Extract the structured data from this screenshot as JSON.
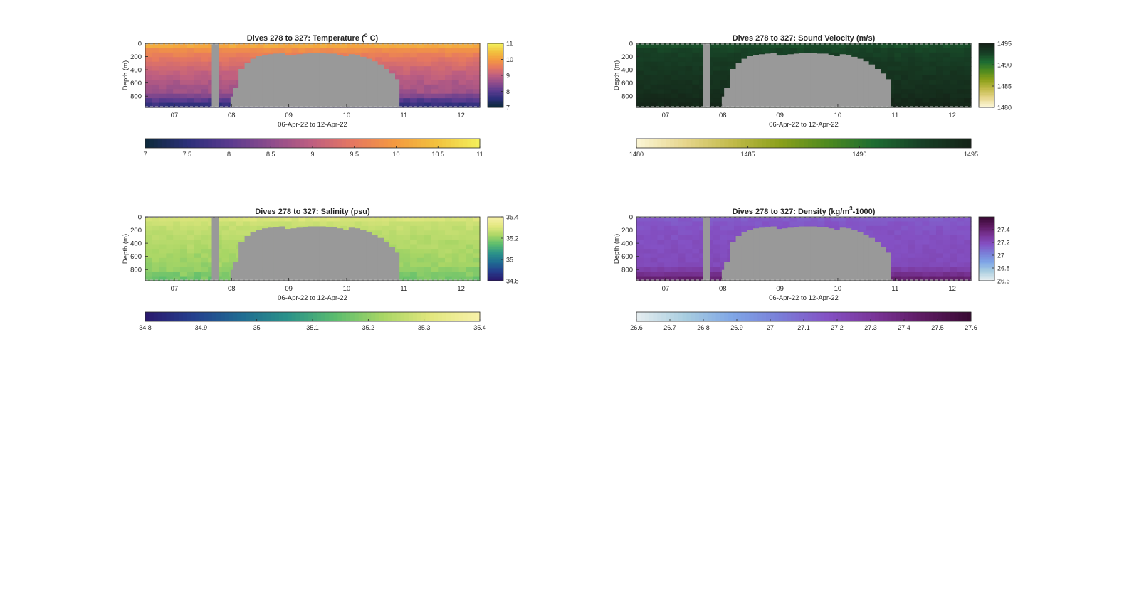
{
  "figure_background": "#ffffff",
  "axes_colors": {
    "mask": "#999999",
    "axis": "#262626",
    "dash": "#bdbdbd"
  },
  "chart_data": [
    {
      "id": "temperature",
      "type": "heatmap",
      "title": "Dives 278 to 327: Temperature (",
      "title_super": "o",
      "title_tail": " C)",
      "ylabel": "Depth (m)",
      "xlabel": "06-Apr-22 to 12-Apr-22",
      "x_tick_labels": [
        "07",
        "08",
        "09",
        "10",
        "11",
        "12"
      ],
      "y_tick_labels": [
        "0",
        "200",
        "400",
        "600",
        "800"
      ],
      "ylim": [
        0,
        970
      ],
      "colormap": [
        "#0f2a3d",
        "#2c2f7a",
        "#5a3b8f",
        "#8e4c8c",
        "#bf5f80",
        "#e67860",
        "#f49a40",
        "#f2c13e",
        "#f3ee5a"
      ],
      "clim": [
        7,
        11
      ],
      "side_colorbar_ticks": [
        "11",
        "10",
        "9",
        "8",
        "7"
      ],
      "bottom_colorbar_ticks": [
        "7",
        "7.5",
        "8",
        "8.5",
        "9",
        "9.5",
        "10",
        "10.5",
        "11"
      ],
      "surface_value": 10.2,
      "deep_value": 8.4,
      "bottom_value": 7.6,
      "right_variation": true
    },
    {
      "id": "sound_velocity",
      "type": "heatmap",
      "title": "Dives 278 to 327: Sound Velocity (m/s)",
      "title_super": "",
      "title_tail": "",
      "ylabel": "Depth (m)",
      "xlabel": "06-Apr-22 to 12-Apr-22",
      "x_tick_labels": [
        "07",
        "08",
        "09",
        "10",
        "11",
        "12"
      ],
      "y_tick_labels": [
        "0",
        "200",
        "400",
        "600",
        "800"
      ],
      "ylim": [
        0,
        970
      ],
      "colormap": [
        "#fbf5d3",
        "#e6d58b",
        "#c1ba49",
        "#8ba01a",
        "#4e8a1f",
        "#1d6c32",
        "#173f25",
        "#142317"
      ],
      "clim": [
        1480,
        1495
      ],
      "side_colorbar_ticks": [
        "1495",
        "1490",
        "1485",
        "1480"
      ],
      "bottom_colorbar_ticks": [
        "1480",
        "1485",
        "1490",
        "1495"
      ],
      "surface_value": 1492.2,
      "deep_value": 1494.4,
      "bottom_value": 1494.7,
      "right_variation": false
    },
    {
      "id": "salinity",
      "type": "heatmap",
      "title": "Dives 278 to 327: Salinity (psu)",
      "title_super": "",
      "title_tail": "",
      "ylabel": "Depth (m)",
      "xlabel": "06-Apr-22 to 12-Apr-22",
      "x_tick_labels": [
        "07",
        "08",
        "09",
        "10",
        "11",
        "12"
      ],
      "y_tick_labels": [
        "0",
        "200",
        "400",
        "600",
        "800"
      ],
      "ylim": [
        0,
        970
      ],
      "colormap": [
        "#2a1a6e",
        "#24408e",
        "#1f6c92",
        "#2b9389",
        "#5cbd6e",
        "#a9d665",
        "#e2e77e",
        "#f7f1a8"
      ],
      "clim": [
        34.8,
        35.4
      ],
      "side_colorbar_ticks": [
        "35.4",
        "35.2",
        "35",
        "34.8"
      ],
      "bottom_colorbar_ticks": [
        "34.8",
        "34.9",
        "35",
        "35.1",
        "35.2",
        "35.3",
        "35.4"
      ],
      "surface_value": 35.3,
      "deep_value": 35.2,
      "bottom_value": 35.17,
      "right_variation": true
    },
    {
      "id": "density",
      "type": "heatmap",
      "title": "Dives 278 to 327: Density (kg/m",
      "title_super": "3",
      "title_tail": "-1000)",
      "ylabel": "Depth (m)",
      "xlabel": "06-Apr-22 to 12-Apr-22",
      "x_tick_labels": [
        "07",
        "08",
        "09",
        "10",
        "11",
        "12"
      ],
      "y_tick_labels": [
        "0",
        "200",
        "400",
        "600",
        "800"
      ],
      "ylim": [
        0,
        970
      ],
      "colormap": [
        "#e3ecef",
        "#a8cde0",
        "#7fa6e6",
        "#7a7ed8",
        "#8451c4",
        "#7a3598",
        "#5e1b63",
        "#3a0a35"
      ],
      "clim": [
        26.6,
        27.6
      ],
      "side_colorbar_ticks": [
        "27.4",
        "27.2",
        "27",
        "26.8",
        "26.6"
      ],
      "bottom_colorbar_ticks": [
        "26.6",
        "26.7",
        "26.8",
        "26.9",
        "27",
        "27.1",
        "27.2",
        "27.3",
        "27.4",
        "27.5",
        "27.6"
      ],
      "surface_value": 27.14,
      "deep_value": 27.22,
      "bottom_value": 27.42,
      "right_variation": false
    }
  ]
}
